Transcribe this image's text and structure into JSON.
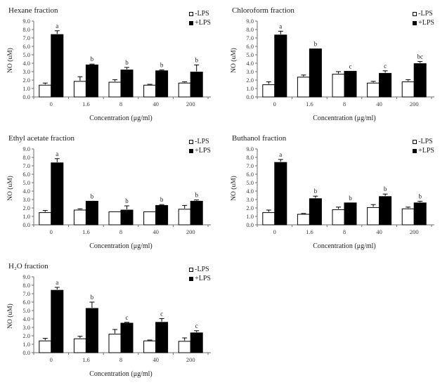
{
  "figure": {
    "background": "#ffffff",
    "bar_fill_plus": "#000000",
    "bar_fill_minus": "#ffffff",
    "bar_stroke": "#000000",
    "axis_color": "#808080",
    "legend_minus_label": "-LPS",
    "legend_plus_label": "+LPS"
  },
  "chart_data": [
    {
      "type": "bar",
      "title": "Hexane fraction",
      "xlabel": "Concentration (μg/ml)",
      "ylabel": "NO (uM)",
      "ylim": [
        0,
        9
      ],
      "ytick_step": 1.0,
      "grid": false,
      "legend_position": "top-right",
      "categories": [
        "0",
        "1.6",
        "8",
        "40",
        "200"
      ],
      "series": [
        {
          "name": "-LPS",
          "fill": "#ffffff",
          "values": [
            1.4,
            1.85,
            1.75,
            1.4,
            1.65
          ],
          "errors": [
            0.25,
            0.55,
            0.3,
            0.1,
            0.15
          ]
        },
        {
          "name": "+LPS",
          "fill": "#000000",
          "values": [
            7.4,
            3.8,
            3.2,
            3.1,
            2.95
          ],
          "errors": [
            0.45,
            0.1,
            0.3,
            0.1,
            0.85
          ]
        }
      ],
      "annotations": [
        "a",
        "b",
        "b",
        "b",
        "b"
      ]
    },
    {
      "type": "bar",
      "title": "Chloroform fraction",
      "xlabel": "Concentration (μg/ml)",
      "ylabel": "NO (uM)",
      "ylim": [
        0,
        9
      ],
      "ytick_step": 1.0,
      "grid": false,
      "legend_position": "top-right",
      "categories": [
        "0",
        "1.6",
        "8",
        "40",
        "200"
      ],
      "series": [
        {
          "name": "-LPS",
          "fill": "#ffffff",
          "values": [
            1.45,
            2.35,
            2.7,
            1.65,
            1.8
          ],
          "errors": [
            0.35,
            0.25,
            0.3,
            0.2,
            0.25
          ]
        },
        {
          "name": "+LPS",
          "fill": "#000000",
          "values": [
            7.35,
            5.7,
            3.05,
            2.8,
            3.95
          ],
          "errors": [
            0.45,
            0,
            0,
            0.3,
            0.25
          ]
        }
      ],
      "annotations": [
        "a",
        "b",
        "c",
        "c",
        "bc"
      ]
    },
    {
      "type": "bar",
      "title": "Ethyl acetate fraction",
      "xlabel": "Concentration (μg/ml)",
      "ylabel": "NO (uM)",
      "ylim": [
        0,
        9
      ],
      "ytick_step": 1.0,
      "grid": false,
      "legend_position": "top-right",
      "categories": [
        "0",
        "1.6",
        "8",
        "40",
        "200"
      ],
      "series": [
        {
          "name": "-LPS",
          "fill": "#ffffff",
          "values": [
            1.45,
            1.75,
            1.55,
            1.55,
            1.85
          ],
          "errors": [
            0.25,
            0.15,
            0,
            0,
            0.45
          ]
        },
        {
          "name": "+LPS",
          "fill": "#000000",
          "values": [
            7.35,
            2.8,
            1.75,
            2.3,
            2.8
          ],
          "errors": [
            0.5,
            0,
            0.5,
            0.1,
            0.15
          ]
        }
      ],
      "annotations": [
        "a",
        "b",
        "b",
        "b",
        "b"
      ]
    },
    {
      "type": "bar",
      "title": "Buthanol fraction",
      "xlabel": "Concentration (μg/ml)",
      "ylabel": "NO (uM)",
      "ylim": [
        0,
        9
      ],
      "ytick_step": 1.0,
      "grid": false,
      "legend_position": "top-right",
      "categories": [
        "0",
        "1.6",
        "8",
        "40",
        "200"
      ],
      "series": [
        {
          "name": "-LPS",
          "fill": "#ffffff",
          "values": [
            1.45,
            1.25,
            1.8,
            2.05,
            1.9
          ],
          "errors": [
            0.3,
            0.1,
            0.3,
            0.35,
            0.2
          ]
        },
        {
          "name": "+LPS",
          "fill": "#000000",
          "values": [
            7.4,
            3.1,
            2.6,
            3.35,
            2.6
          ],
          "errors": [
            0.35,
            0.3,
            0,
            0.3,
            0.2
          ]
        }
      ],
      "annotations": [
        "a",
        "b",
        "b",
        "b",
        "b"
      ]
    },
    {
      "type": "bar",
      "title": "H₂O fraction",
      "xlabel": "Concentration (μg/ml)",
      "ylabel": "NO (uM)",
      "ylim": [
        0,
        9
      ],
      "ytick_step": 1.0,
      "grid": false,
      "legend_position": "top-right",
      "categories": [
        "0",
        "1.6",
        "8",
        "40",
        "200"
      ],
      "series": [
        {
          "name": "-LPS",
          "fill": "#ffffff",
          "values": [
            1.4,
            1.65,
            2.2,
            1.4,
            1.35
          ],
          "errors": [
            0.3,
            0.3,
            0.55,
            0.1,
            0.4
          ]
        },
        {
          "name": "+LPS",
          "fill": "#000000",
          "values": [
            7.4,
            5.25,
            3.5,
            3.6,
            2.35
          ],
          "errors": [
            0.35,
            0.75,
            0.1,
            0.45,
            0.25
          ]
        }
      ],
      "annotations": [
        "a",
        "b",
        "c",
        "c",
        "c"
      ]
    }
  ]
}
